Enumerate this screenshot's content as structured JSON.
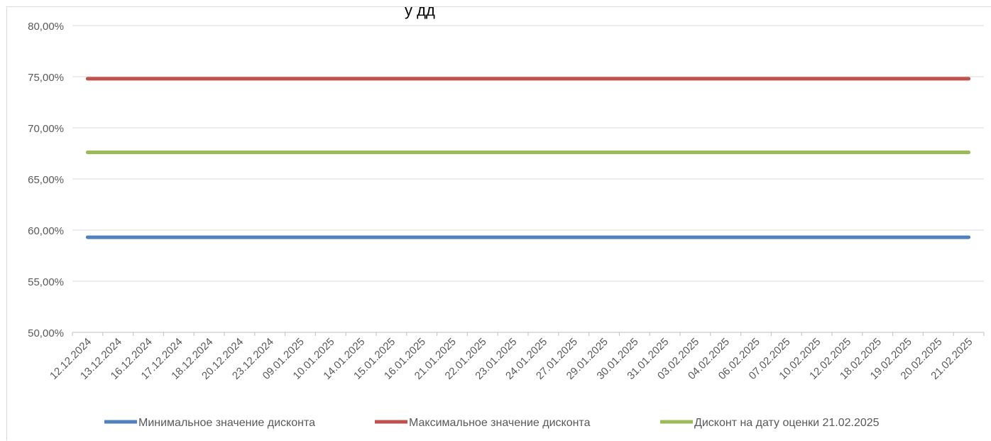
{
  "chart_data": {
    "type": "line",
    "title_fragment": "у дд",
    "categories": [
      "12.12.2024",
      "13.12.2024",
      "16.12.2024",
      "17.12.2024",
      "18.12.2024",
      "20.12.2024",
      "23.12.2024",
      "09.01.2025",
      "10.01.2025",
      "14.01.2025",
      "15.01.2025",
      "16.01.2025",
      "21.01.2025",
      "22.01.2025",
      "23.01.2025",
      "24.01.2025",
      "27.01.2025",
      "29.01.2025",
      "30.01.2025",
      "31.01.2025",
      "03.02.2025",
      "04.02.2025",
      "06.02.2025",
      "07.02.2025",
      "10.02.2025",
      "12.02.2025",
      "18.02.2025",
      "19.02.2025",
      "20.02.2025",
      "21.02.2025"
    ],
    "y_ticks": [
      "50,00%",
      "55,00%",
      "60,00%",
      "65,00%",
      "70,00%",
      "75,00%",
      "80,00%"
    ],
    "ylim": [
      50,
      80
    ],
    "y_unit": "percent",
    "grid": true,
    "legend_position": "bottom",
    "series": [
      {
        "name": "Минимальное значение дисконта",
        "color": "#4f81bd",
        "value": 59.3
      },
      {
        "name": "Максимальное значение дисконта",
        "color": "#c0504d",
        "value": 74.8
      },
      {
        "name": "Дисконт на дату оценки 21.02.2025",
        "color": "#9bbb59",
        "value": 67.6
      }
    ]
  }
}
